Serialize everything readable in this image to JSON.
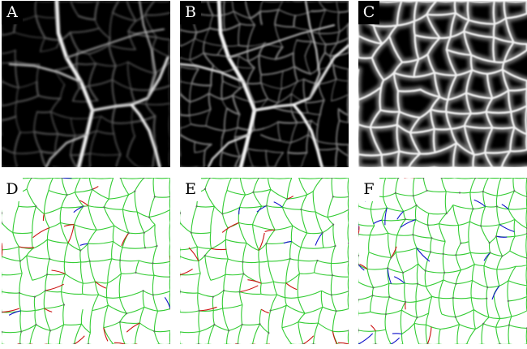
{
  "panels": [
    {
      "id": "a",
      "label": "A",
      "style": "dark"
    },
    {
      "id": "b",
      "label": "B",
      "style": "dark"
    },
    {
      "id": "c",
      "label": "C",
      "style": "dark"
    },
    {
      "id": "d",
      "label": "D",
      "style": "light"
    },
    {
      "id": "e",
      "label": "E",
      "style": "light"
    },
    {
      "id": "f",
      "label": "F",
      "style": "light"
    }
  ],
  "colors": {
    "network_edge": "#33cc33",
    "false_positive_edge": "#cc1111",
    "false_negative_edge": "#1111cc",
    "background_dark": "#000000",
    "background_light": "#ffffff"
  }
}
